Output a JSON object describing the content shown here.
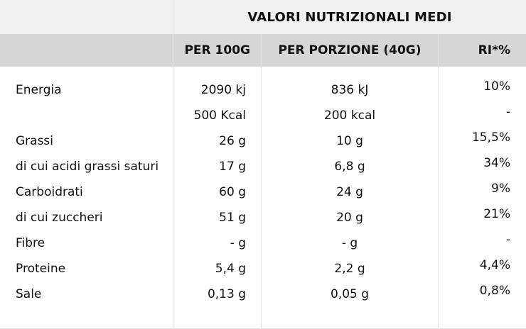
{
  "header": {
    "title": "VALORI NUTRIZIONALI MEDI",
    "col_per100": "PER 100G",
    "col_porzione": "PER PORZIONE (40G)",
    "col_ri": "RI*%"
  },
  "rows": [
    {
      "label": "Energia",
      "per100": "2090 kj",
      "porzione": "836 kJ",
      "ri": "10%"
    },
    {
      "label": "",
      "per100": "500 Kcal",
      "porzione": "200 kcal",
      "ri": "-"
    },
    {
      "label": "Grassi",
      "per100": "26 g",
      "porzione": "10 g",
      "ri": "15,5%"
    },
    {
      "label": "di cui acidi grassi saturi",
      "per100": "17 g",
      "porzione": "6,8 g",
      "ri": "34%"
    },
    {
      "label": "Carboidrati",
      "per100": "60 g",
      "porzione": "24 g",
      "ri": "9%"
    },
    {
      "label": "di cui zuccheri",
      "per100": "51 g",
      "porzione": "20 g",
      "ri": "21%"
    },
    {
      "label": "Fibre",
      "per100": "- g",
      "porzione": "- g",
      "ri": "-"
    },
    {
      "label": "Proteine",
      "per100": "5,4 g",
      "porzione": "2,2 g",
      "ri": "4,4%"
    },
    {
      "label": "Sale",
      "per100": "0,13 g",
      "porzione": "0,05 g",
      "ri": "0,8%"
    }
  ],
  "colors": {
    "header_top_bg": "#f0f0f0",
    "header_cols_bg": "#d6d6d6",
    "separator": "#e2e2e2",
    "text": "#111111"
  }
}
